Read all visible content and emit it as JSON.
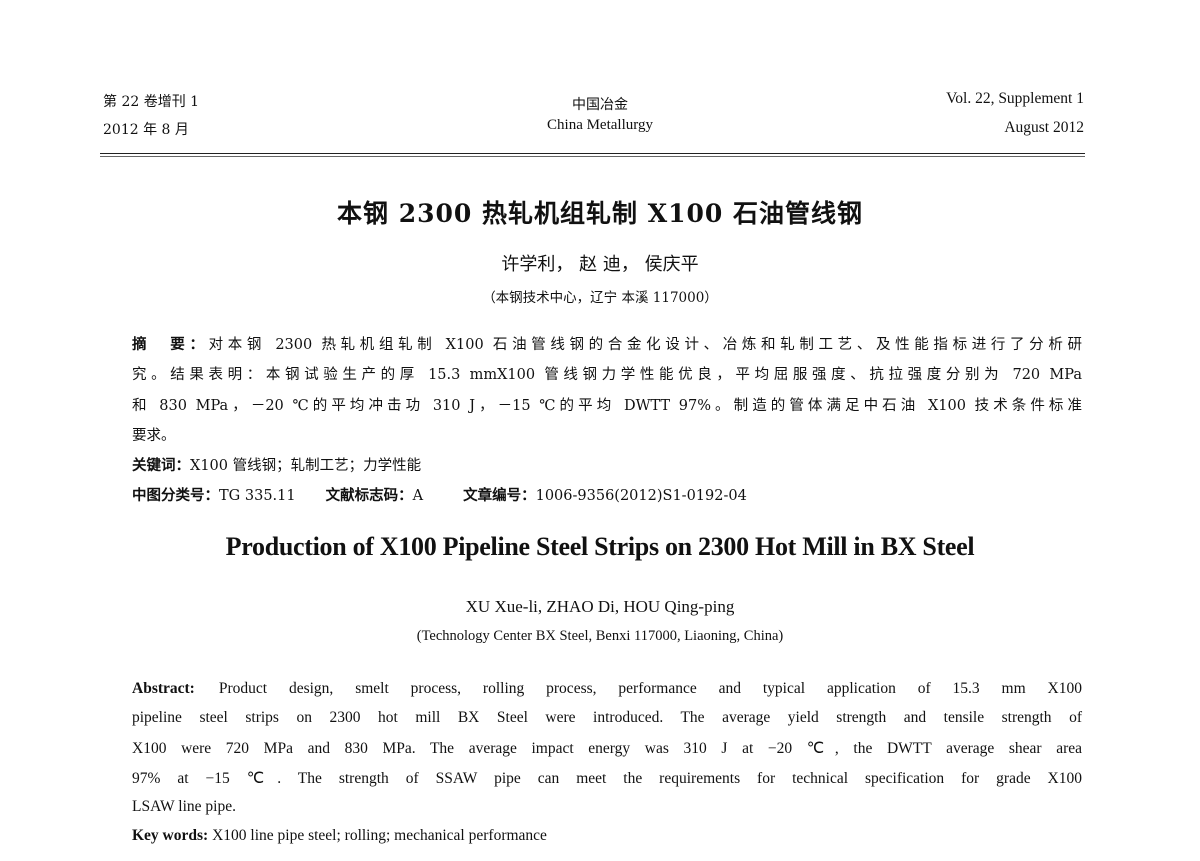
{
  "header": {
    "left_line1": "第 22 卷增刊 1",
    "left_line2": "2012 年 8 月",
    "center_line1": "中国冶金",
    "center_line2": "China Metallurgy",
    "right_line1": "Vol. 22, Supplement 1",
    "right_line2": "August 2012"
  },
  "cn": {
    "title": "本钢 2300 热轧机组轧制 X100 石油管线钢",
    "authors": "许学利，  赵  迪，  侯庆平",
    "affiliation": "（本钢技术中心，辽宁 本溪 117000）",
    "abstract_label": "摘　要：",
    "abstract_lines": [
      "对本钢 2300 热轧机组轧制 X100 石油管线钢的合金化设计、冶炼和轧制工艺、及性能指标进行了分析研",
      "究。结果表明：本钢试验生产的厚 15.3 mmX100 管线钢力学性能优良，平均屈服强度、抗拉强度分别为 720 MPa",
      "和 830 MPa，－20 ℃的平均冲击功 310 J，－15 ℃的平均 DWTT 97%。制造的管体满足中石油 X100 技术条件标准",
      "要求。"
    ],
    "keywords_label": "关键词：",
    "keywords": "X100 管线钢；轧制工艺；力学性能",
    "clc_label": "中图分类号：",
    "clc": "TG 335.11",
    "doc_code_label": "文献标志码：",
    "doc_code": "A",
    "article_no_label": "文章编号：",
    "article_no": "1006-9356(2012)S1-0192-04"
  },
  "en": {
    "title": "Production of X100 Pipeline Steel Strips on 2300 Hot Mill in BX Steel",
    "authors": "XU Xue-li,   ZHAO Di,   HOU Qing-ping",
    "affiliation": "(Technology Center BX Steel, Benxi 117000, Liaoning, China)",
    "abstract_label": "Abstract:",
    "abstract_lines": [
      "Product design, smelt process, rolling process, performance and typical application of 15.3 mm X100",
      "pipeline steel strips on 2300 hot mill BX Steel were introduced. The average yield strength and tensile strength of",
      "X100 were 720 MPa and 830 MPa. The average impact energy was 310 J at −20 ℃, the DWTT average shear area",
      "97% at −15 ℃. The strength of SSAW pipe can meet the requirements for technical specification for grade X100",
      "LSAW line pipe."
    ],
    "keywords_label": "Key words:",
    "keywords": "X100 line pipe steel; rolling; mechanical performance"
  }
}
